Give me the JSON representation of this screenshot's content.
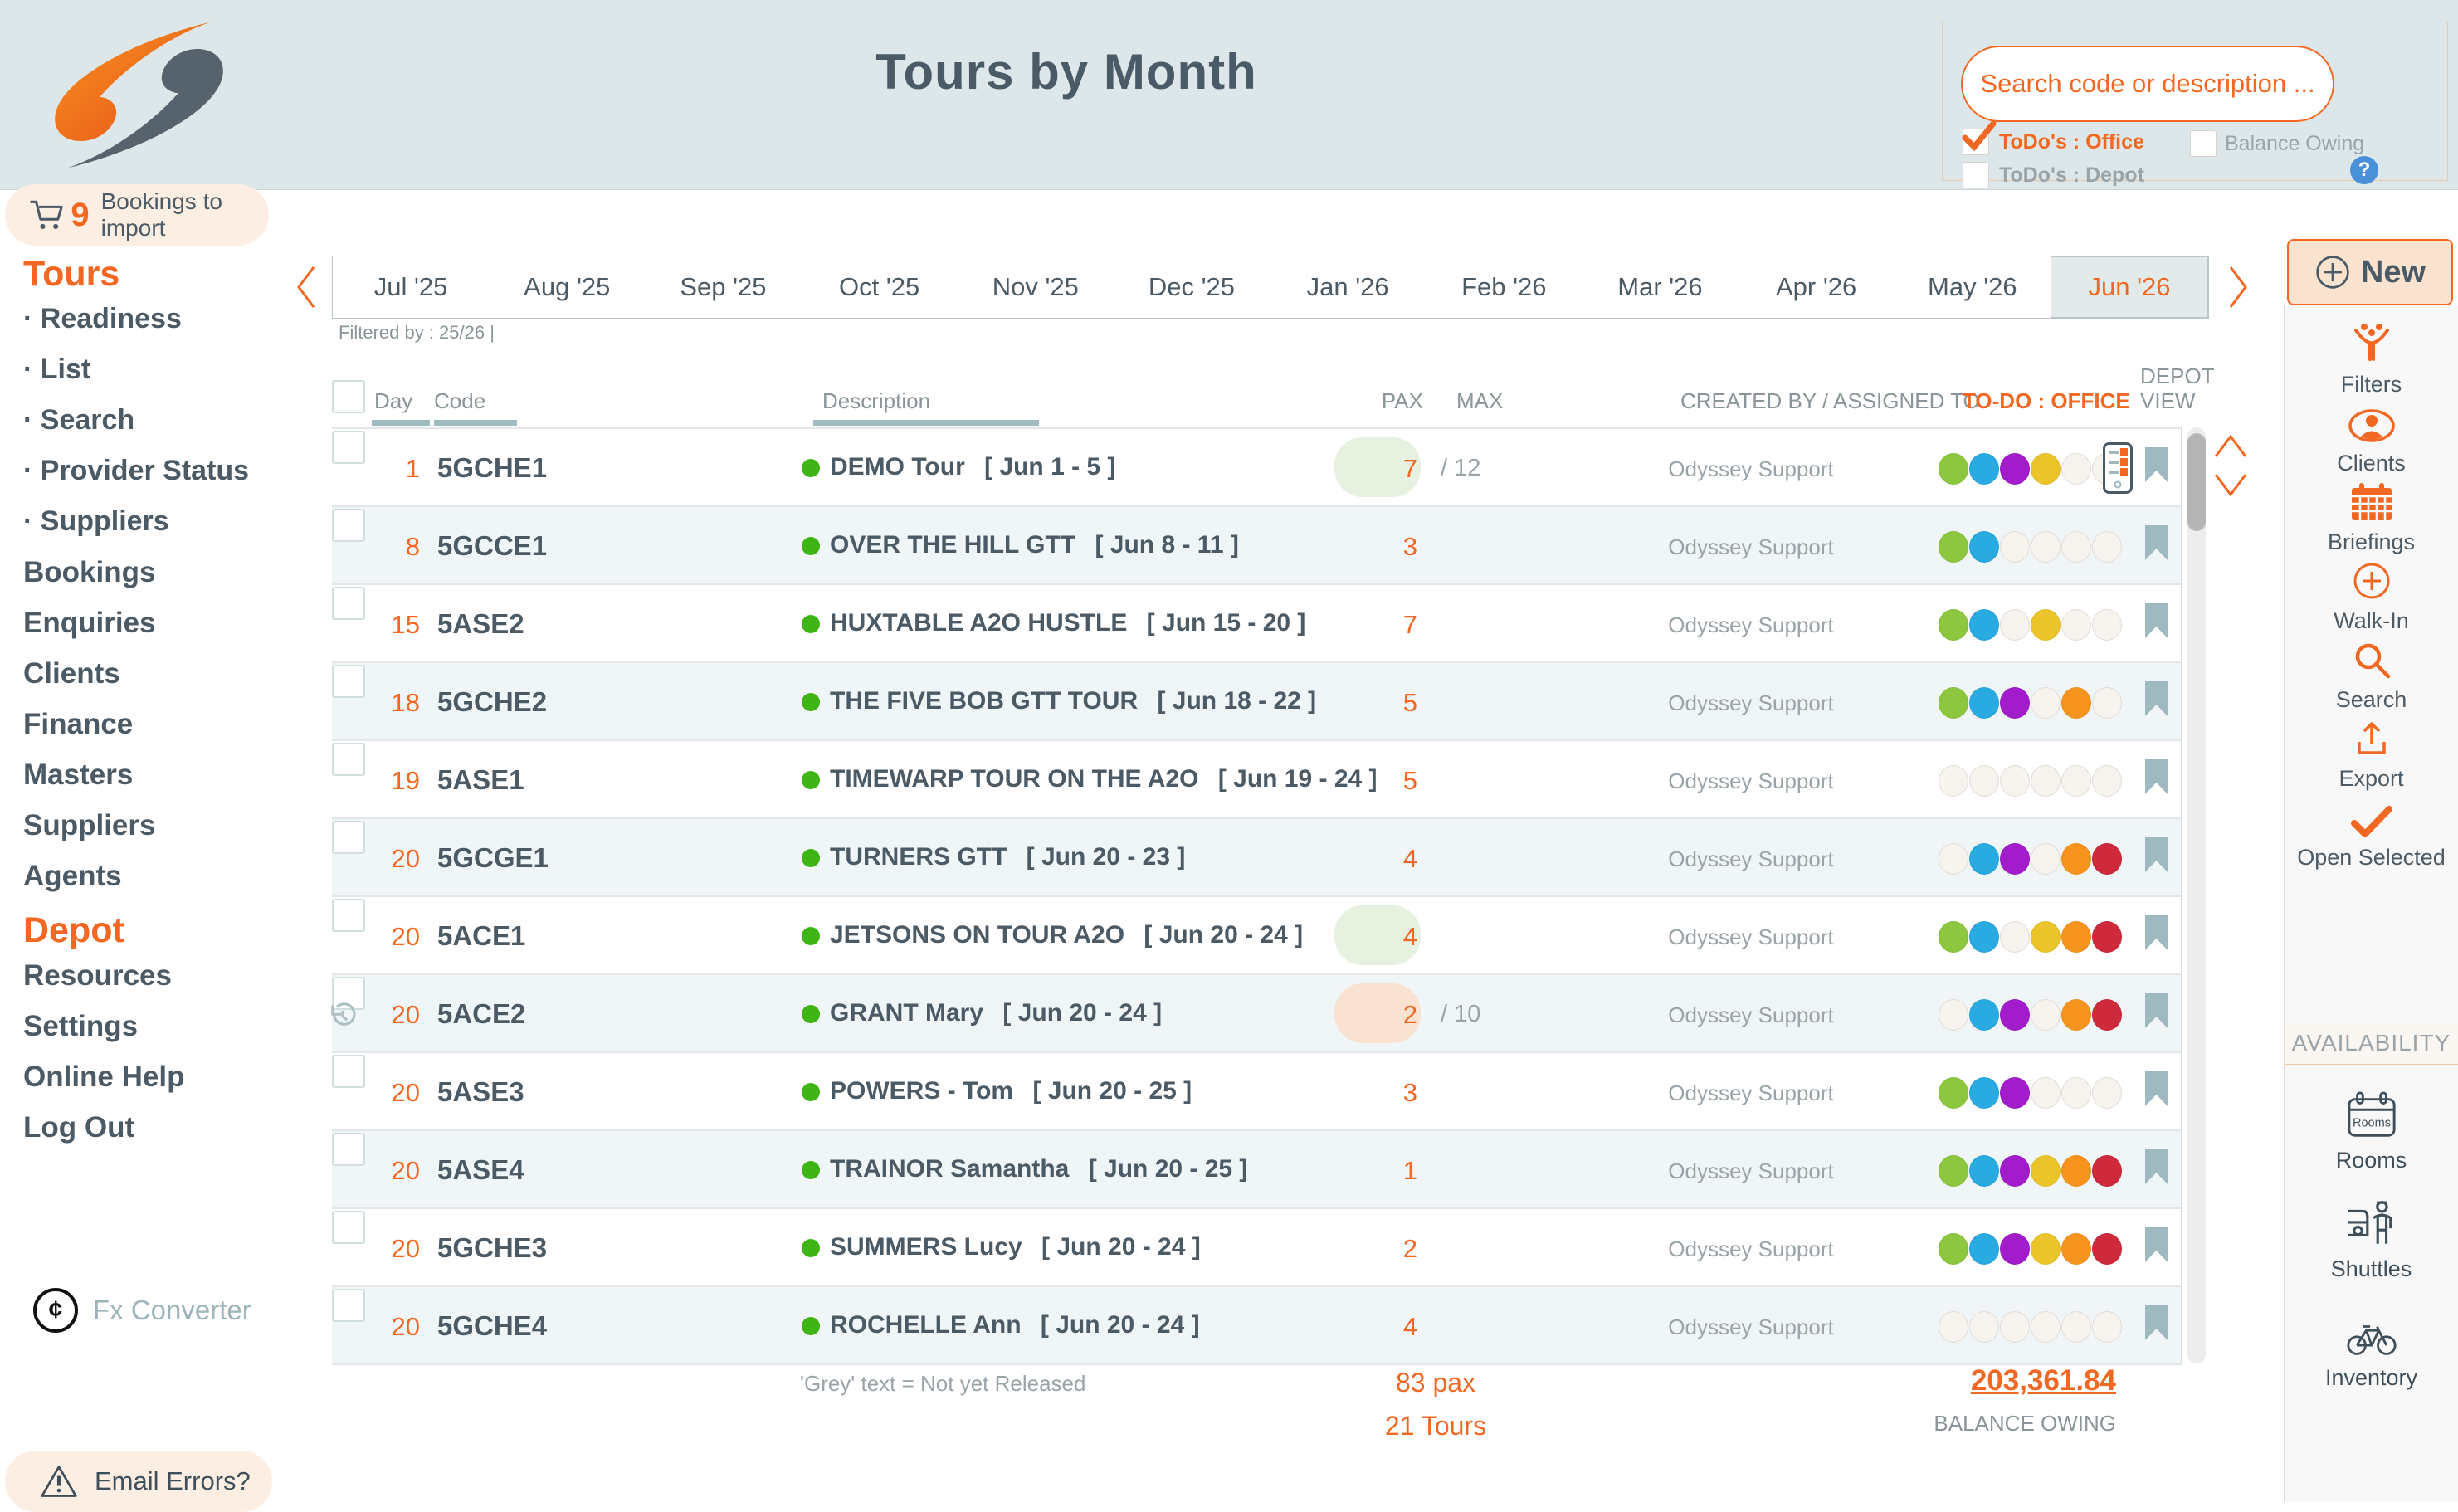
{
  "app": {
    "accent": "#f26722"
  },
  "header": {
    "title": "Tours by Month",
    "logo_icon": "logo-swirl-icon",
    "bookings_import": {
      "icon": "cart-icon",
      "count": "9",
      "label": "Bookings to import"
    },
    "search": {
      "placeholder": "Search code or description ...",
      "todos_office": {
        "label": "ToDo's : Office",
        "checked": true
      },
      "todos_depot": {
        "label": "ToDo's : Depot",
        "checked": false
      },
      "balance_owing": {
        "label": "Balance Owing",
        "checked": false
      },
      "help_icon": "question-icon"
    }
  },
  "sidebar": {
    "items": [
      {
        "label": "Tours",
        "type": "section"
      },
      {
        "label": "Readiness",
        "type": "sub"
      },
      {
        "label": "List",
        "type": "sub"
      },
      {
        "label": "Search",
        "type": "sub"
      },
      {
        "label": "Provider Status",
        "type": "sub"
      },
      {
        "label": "Suppliers",
        "type": "sub"
      },
      {
        "label": "Bookings",
        "type": "main"
      },
      {
        "label": "Enquiries",
        "type": "main"
      },
      {
        "label": "Clients",
        "type": "main"
      },
      {
        "label": "Finance",
        "type": "main"
      },
      {
        "label": "Masters",
        "type": "main"
      },
      {
        "label": "Suppliers",
        "type": "main"
      },
      {
        "label": "Agents",
        "type": "main"
      },
      {
        "label": "Depot",
        "type": "section"
      },
      {
        "label": "Resources",
        "type": "main"
      },
      {
        "label": "Settings",
        "type": "main"
      },
      {
        "label": "Online Help",
        "type": "main"
      },
      {
        "label": "Log Out",
        "type": "main"
      }
    ]
  },
  "months": {
    "tabs": [
      "Jul '25",
      "Aug '25",
      "Sep '25",
      "Oct '25",
      "Nov '25",
      "Dec '25",
      "Jan '26",
      "Feb '26",
      "Mar '26",
      "Apr '26",
      "May '26",
      "Jun '26"
    ],
    "selected": "Jun '26",
    "filtered_by": "Filtered by : 25/26 |"
  },
  "table": {
    "headers": {
      "day": "Day",
      "code": "Code",
      "description": "Description",
      "pax": "PAX",
      "max": "MAX",
      "created": "CREATED BY / ASSIGNED TO",
      "todo": "TO-DO : OFFICE",
      "depot_line1": "DEPOT",
      "depot_line2": "VIEW"
    },
    "rows": [
      {
        "day": "1",
        "code": "5GCHE1",
        "description": "DEMO Tour",
        "dates": "[ Jun 1 - 5 ]",
        "pax": "7",
        "max": "/ 12",
        "pax_pill": "green",
        "created_by": "Odyssey Support",
        "todos": [
          "green",
          "blue",
          "purple",
          "gold",
          "none",
          "none"
        ],
        "depot_view": true,
        "history": false
      },
      {
        "day": "8",
        "code": "5GCCE1",
        "description": "OVER THE HILL GTT",
        "dates": "[ Jun 8 - 11 ]",
        "pax": "3",
        "max": "",
        "pax_pill": null,
        "created_by": "Odyssey Support",
        "todos": [
          "green",
          "blue",
          "none",
          "none",
          "none",
          "none"
        ],
        "depot_view": false,
        "history": false
      },
      {
        "day": "15",
        "code": "5ASE2",
        "description": "HUXTABLE A2O HUSTLE",
        "dates": "[ Jun 15 - 20 ]",
        "pax": "7",
        "max": "",
        "pax_pill": null,
        "created_by": "Odyssey Support",
        "todos": [
          "green",
          "blue",
          "none",
          "gold",
          "none",
          "none"
        ],
        "depot_view": false,
        "history": false
      },
      {
        "day": "18",
        "code": "5GCHE2",
        "description": "THE FIVE BOB GTT TOUR",
        "dates": "[ Jun 18 - 22 ]",
        "pax": "5",
        "max": "",
        "pax_pill": null,
        "created_by": "Odyssey Support",
        "todos": [
          "green",
          "blue",
          "purple",
          "none",
          "orange",
          "none"
        ],
        "depot_view": false,
        "history": false
      },
      {
        "day": "19",
        "code": "5ASE1",
        "description": "TIMEWARP TOUR ON THE A2O",
        "dates": "[ Jun 19 - 24 ]",
        "pax": "5",
        "max": "",
        "pax_pill": null,
        "created_by": "Odyssey Support",
        "todos": [
          "none",
          "none",
          "none",
          "none",
          "none",
          "none"
        ],
        "depot_view": false,
        "history": false
      },
      {
        "day": "20",
        "code": "5GCGE1",
        "description": "TURNERS GTT",
        "dates": "[ Jun 20 - 23 ]",
        "pax": "4",
        "max": "",
        "pax_pill": null,
        "created_by": "Odyssey Support",
        "todos": [
          "none",
          "blue",
          "purple",
          "none",
          "orange",
          "red"
        ],
        "depot_view": false,
        "history": false
      },
      {
        "day": "20",
        "code": "5ACE1",
        "description": "JETSONS ON TOUR A2O",
        "dates": "[ Jun 20 - 24 ]",
        "pax": "4",
        "max": "",
        "pax_pill": "green",
        "created_by": "Odyssey Support",
        "todos": [
          "green",
          "blue",
          "none",
          "gold",
          "orange",
          "red"
        ],
        "depot_view": false,
        "history": false
      },
      {
        "day": "20",
        "code": "5ACE2",
        "description": "GRANT Mary",
        "dates": "[ Jun 20 - 24 ]",
        "pax": "2",
        "max": "/ 10",
        "pax_pill": "salmon",
        "created_by": "Odyssey Support",
        "todos": [
          "none",
          "blue",
          "purple",
          "none",
          "orange",
          "red"
        ],
        "depot_view": false,
        "history": true
      },
      {
        "day": "20",
        "code": "5ASE3",
        "description": "POWERS - Tom",
        "dates": "[ Jun 20 - 25 ]",
        "pax": "3",
        "max": "",
        "pax_pill": null,
        "created_by": "Odyssey Support",
        "todos": [
          "green",
          "blue",
          "purple",
          "none",
          "none",
          "none"
        ],
        "depot_view": false,
        "history": false
      },
      {
        "day": "20",
        "code": "5ASE4",
        "description": "TRAINOR Samantha",
        "dates": "[ Jun 20 - 25 ]",
        "pax": "1",
        "max": "",
        "pax_pill": null,
        "created_by": "Odyssey Support",
        "todos": [
          "green",
          "blue",
          "purple",
          "gold",
          "orange",
          "red"
        ],
        "depot_view": false,
        "history": false
      },
      {
        "day": "20",
        "code": "5GCHE3",
        "description": "SUMMERS Lucy",
        "dates": "[ Jun 20 - 24 ]",
        "pax": "2",
        "max": "",
        "pax_pill": null,
        "created_by": "Odyssey Support",
        "todos": [
          "green",
          "blue",
          "purple",
          "gold",
          "orange",
          "red"
        ],
        "depot_view": false,
        "history": false
      },
      {
        "day": "20",
        "code": "5GCHE4",
        "description": "ROCHELLE Ann",
        "dates": "[ Jun 20 - 24 ]",
        "pax": "4",
        "max": "",
        "pax_pill": null,
        "created_by": "Odyssey Support",
        "todos": [
          "none",
          "none",
          "none",
          "none",
          "none",
          "none"
        ],
        "depot_view": false,
        "history": false
      }
    ]
  },
  "totals": {
    "pax": "83 pax",
    "tours": "21 Tours",
    "balance": "203,361.84",
    "balance_label": "BALANCE OWING",
    "note": "'Grey' text = Not yet Released"
  },
  "right_panel": {
    "new_button": {
      "label": "New",
      "icon": "plus-circle-icon"
    },
    "actions": [
      {
        "label": "Filters",
        "icon": "filters-icon"
      },
      {
        "label": "Clients",
        "icon": "clients-icon"
      },
      {
        "label": "Briefings",
        "icon": "briefings-icon"
      },
      {
        "label": "Walk-In",
        "icon": "walk-in-icon"
      },
      {
        "label": "Search",
        "icon": "search-icon"
      },
      {
        "label": "Export",
        "icon": "export-icon"
      },
      {
        "label": "Open Selected",
        "icon": "check-icon"
      }
    ],
    "availability": {
      "label": "AVAILABILITY",
      "items": [
        {
          "label": "Rooms",
          "icon": "rooms-calendar-icon"
        },
        {
          "label": "Shuttles",
          "icon": "shuttles-icon"
        },
        {
          "label": "Inventory",
          "icon": "inventory-bicycle-icon"
        }
      ]
    }
  },
  "footer": {
    "fx": {
      "icon": "fx-cent-icon",
      "label": "Fx Converter"
    },
    "email_errors": {
      "icon": "warning-icon",
      "label": "Email Errors?"
    }
  },
  "colors": {
    "todo_dots": {
      "green": "#8dc63f",
      "blue": "#29abe2",
      "purple": "#a21ccc",
      "gold": "#eac428",
      "orange": "#f7941e",
      "red": "#cf2a3c",
      "none": "#f7f3ee"
    },
    "pax_pills": {
      "green": "#e7f1df",
      "salmon": "#f9e2d2"
    }
  }
}
